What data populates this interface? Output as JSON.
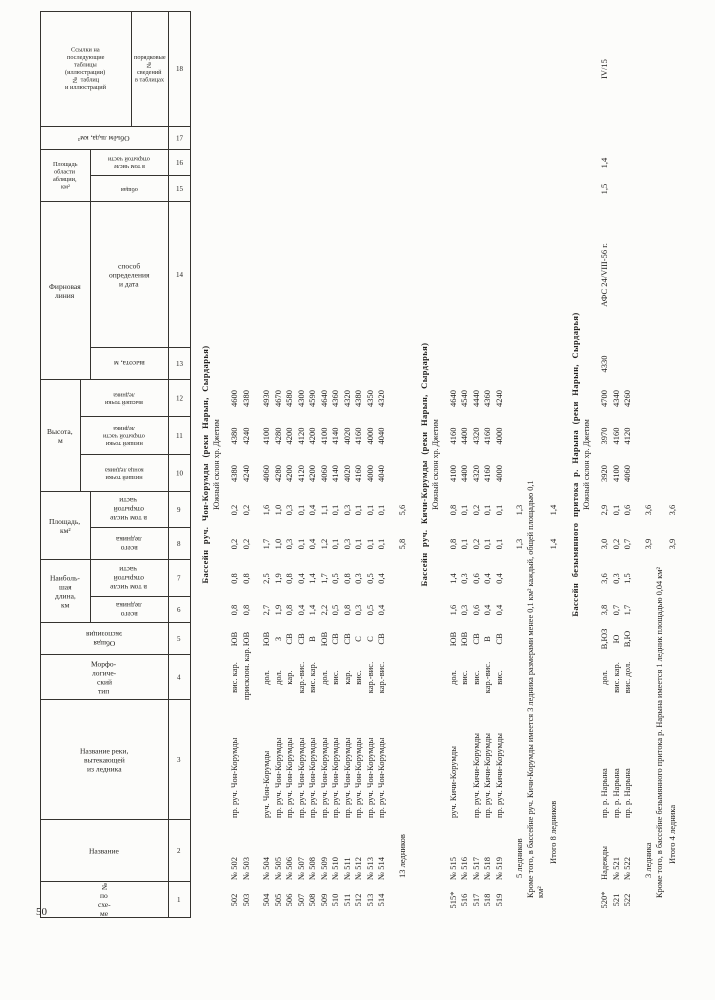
{
  "page": {
    "number": "50"
  },
  "table": {
    "column_numbers": [
      "1",
      "2",
      "3",
      "4",
      "5",
      "6",
      "7",
      "8",
      "9",
      "10",
      "11",
      "12",
      "13",
      "14",
      "15",
      "16",
      "17",
      "18"
    ],
    "headers": {
      "c1": "№\nпо\nсхе-\nме",
      "c2": "Название",
      "c3": "Название реки,\nвытекающей\nиз ледника",
      "c4": "Морфо-\nлогиче-\nский\nтип",
      "c5": "Общая\nэкспозиция",
      "g67": "Наиболь-\nшая\nдлина,\nкм",
      "c6": "всего\nледника",
      "c7": "в том числе\nоткрытой\nчасти",
      "g89": "Площадь,\nкм²",
      "c8": "всего\nледника",
      "c9": "в том числе\nоткрытой\nчасти",
      "g1012": "Высота,\nм",
      "c10": "низшей точки\nконца ледника",
      "c11": "низшей точки\nоткрытой части\nледника",
      "c12": "высшей точки\nледника",
      "g1314": "Фирновая линия",
      "c13": "высота, м",
      "c14": "способ\nопределения\nи дата",
      "g1516": "Площадь\nобласти\nабляции,\nкм²",
      "c15": "общая",
      "c16": "в том числе\nоткрытой части",
      "c17": "Объём льда, км³",
      "g18": "Ссылки на\nпоследующие\nтаблицы\n(иллюстрации)\n№ таблиц\nи иллюстраций",
      "c18": "порядковые №\nсведений\nв таблицах"
    },
    "sections": [
      {
        "title": "Бассейн руч. Чон-Корумды (реки Нарын, Сырдарья)",
        "subtitle": "Южный склон хр. Джетим",
        "rows": [
          {
            "n": "502",
            "name": "№ 502",
            "river": "пр. руч. Чон-Корумды",
            "type": "вис. кар.",
            "exp": "ЮВ",
            "len_t": "0,8",
            "len_o": "0,8",
            "area_t": "0,2",
            "area_o": "0,2",
            "h_end": "4380",
            "h_open": "4380",
            "h_top": "4600",
            "firn_h": "",
            "firn_m": "",
            "abl_t": "",
            "abl_o": "",
            "vol": "",
            "ref": ""
          },
          {
            "n": "503",
            "name": "№ 503",
            "river": "",
            "type": "присклон. кар.",
            "exp": "ЮВ",
            "len_t": "0,8",
            "len_o": "0,8",
            "area_t": "0,2",
            "area_o": "0,2",
            "h_end": "4240",
            "h_open": "4240",
            "h_top": "4380",
            "firn_h": "",
            "firn_m": "",
            "abl_t": "",
            "abl_o": "",
            "vol": "",
            "ref": ""
          },
          {
            "n": "504",
            "gap": true,
            "name": "№ 504",
            "river": "руч. Чон-Корумды",
            "type": "дол.",
            "exp": "ЮВ",
            "len_t": "2,7",
            "len_o": "2,5",
            "area_t": "1,7",
            "area_o": "1,6",
            "h_end": "4060",
            "h_open": "4100",
            "h_top": "4930",
            "firn_h": "",
            "firn_m": "",
            "abl_t": "",
            "abl_o": "",
            "vol": "",
            "ref": ""
          },
          {
            "n": "505",
            "name": "№ 505",
            "river": "пр. руч. Чон-Корумды",
            "type": "дол.",
            "exp": "З",
            "len_t": "1,9",
            "len_o": "1,9",
            "area_t": "1,0",
            "area_o": "1,0",
            "h_end": "4280",
            "h_open": "4280",
            "h_top": "4670",
            "firn_h": "",
            "firn_m": "",
            "abl_t": "",
            "abl_o": "",
            "vol": "",
            "ref": ""
          },
          {
            "n": "506",
            "name": "№ 506",
            "river": "пр. руч. Чон-Корумды",
            "type": "кар.",
            "exp": "СВ",
            "len_t": "0,8",
            "len_o": "0,8",
            "area_t": "0,3",
            "area_o": "0,3",
            "h_end": "4200",
            "h_open": "4200",
            "h_top": "4580",
            "firn_h": "",
            "firn_m": "",
            "abl_t": "",
            "abl_o": "",
            "vol": "",
            "ref": ""
          },
          {
            "n": "507",
            "name": "№ 507",
            "river": "пр. руч. Чон-Корумды",
            "type": "кар.-вис.",
            "exp": "СВ",
            "len_t": "0,4",
            "len_o": "0,4",
            "area_t": "0,1",
            "area_o": "0,1",
            "h_end": "4120",
            "h_open": "4120",
            "h_top": "4300",
            "firn_h": "",
            "firn_m": "",
            "abl_t": "",
            "abl_o": "",
            "vol": "",
            "ref": ""
          },
          {
            "n": "508",
            "name": "№ 508",
            "river": "пр. руч. Чон-Корумды",
            "type": "вис. кар.",
            "exp": "В",
            "len_t": "1,4",
            "len_o": "1,4",
            "area_t": "0,4",
            "area_o": "0,4",
            "h_end": "4200",
            "h_open": "4200",
            "h_top": "4590",
            "firn_h": "",
            "firn_m": "",
            "abl_t": "",
            "abl_o": "",
            "vol": "",
            "ref": ""
          },
          {
            "n": "509",
            "name": "№ 509",
            "river": "пр. руч. Чон-Корумды",
            "type": "дол.",
            "exp": "ЮВ",
            "len_t": "2,2",
            "len_o": "1,7",
            "area_t": "1,2",
            "area_o": "1,1",
            "h_end": "4060",
            "h_open": "4100",
            "h_top": "4640",
            "firn_h": "",
            "firn_m": "",
            "abl_t": "",
            "abl_o": "",
            "vol": "",
            "ref": ""
          },
          {
            "n": "510",
            "name": "№ 510",
            "river": "пр. руч. Чон-Корумды",
            "type": "вис.",
            "exp": "СВ",
            "len_t": "0,5",
            "len_o": "0,5",
            "area_t": "0,1",
            "area_o": "0,1",
            "h_end": "4140",
            "h_open": "4140",
            "h_top": "4360",
            "firn_h": "",
            "firn_m": "",
            "abl_t": "",
            "abl_o": "",
            "vol": "",
            "ref": ""
          },
          {
            "n": "511",
            "name": "№ 511",
            "river": "пр. руч. Чон-Корумды",
            "type": "кар.",
            "exp": "СВ",
            "len_t": "0,8",
            "len_o": "0,8",
            "area_t": "0,3",
            "area_o": "0,3",
            "h_end": "4020",
            "h_open": "4020",
            "h_top": "4320",
            "firn_h": "",
            "firn_m": "",
            "abl_t": "",
            "abl_o": "",
            "vol": "",
            "ref": ""
          },
          {
            "n": "512",
            "name": "№ 512",
            "river": "пр. руч. Чон-Корумды",
            "type": "вис.",
            "exp": "С",
            "len_t": "0,3",
            "len_o": "0,3",
            "area_t": "0,1",
            "area_o": "0,1",
            "h_end": "4160",
            "h_open": "4160",
            "h_top": "4380",
            "firn_h": "",
            "firn_m": "",
            "abl_t": "",
            "abl_o": "",
            "vol": "",
            "ref": ""
          },
          {
            "n": "513",
            "name": "№ 513",
            "river": "пр. руч. Чон-Корумды",
            "type": "кар.-вис.",
            "exp": "С",
            "len_t": "0,5",
            "len_o": "0,5",
            "area_t": "0,1",
            "area_o": "0,1",
            "h_end": "4000",
            "h_open": "4000",
            "h_top": "4350",
            "firn_h": "",
            "firn_m": "",
            "abl_t": "",
            "abl_o": "",
            "vol": "",
            "ref": ""
          },
          {
            "n": "514",
            "name": "№ 514",
            "river": "пр. руч. Чон-Корумды",
            "type": "кар.-вис.",
            "exp": "СВ",
            "len_t": "0,4",
            "len_o": "0,4",
            "area_t": "0,1",
            "area_o": "0,1",
            "h_end": "4040",
            "h_open": "4040",
            "h_top": "4320",
            "firn_h": "",
            "firn_m": "",
            "abl_t": "",
            "abl_o": "",
            "vol": "",
            "ref": ""
          }
        ],
        "summary": [
          {
            "label": "13 ледников",
            "area_t": "5,8",
            "area_o": "5,6"
          }
        ]
      },
      {
        "title": "Бассейн руч. Кичи-Корумды (реки Нарын, Сырдарья)",
        "subtitle": "Южный склон хр. Джетим",
        "rows": [
          {
            "n": "515*",
            "name": "№ 515",
            "river": "руч. Кичи-Корумды",
            "type": "дол.",
            "exp": "ЮВ",
            "len_t": "1,6",
            "len_o": "1,4",
            "area_t": "0,8",
            "area_o": "0,8",
            "h_end": "4100",
            "h_open": "4160",
            "h_top": "4640",
            "firn_h": "",
            "firn_m": "",
            "abl_t": "",
            "abl_o": "",
            "vol": "",
            "ref": ""
          },
          {
            "n": "516",
            "name": "№ 516",
            "river": "",
            "type": "вис.",
            "exp": "ЮВ",
            "len_t": "0,3",
            "len_o": "0,3",
            "area_t": "0,1",
            "area_o": "0,1",
            "h_end": "4400",
            "h_open": "4400",
            "h_top": "4540",
            "firn_h": "",
            "firn_m": "",
            "abl_t": "",
            "abl_o": "",
            "vol": "",
            "ref": ""
          },
          {
            "n": "517",
            "name": "№ 517",
            "river": "пр. руч. Кичи-Корумды",
            "type": "вис.",
            "exp": "СВ",
            "len_t": "0,6",
            "len_o": "0,6",
            "area_t": "0,2",
            "area_o": "0,2",
            "h_end": "4320",
            "h_open": "4320",
            "h_top": "4440",
            "firn_h": "",
            "firn_m": "",
            "abl_t": "",
            "abl_o": "",
            "vol": "",
            "ref": ""
          },
          {
            "n": "518",
            "name": "№ 518",
            "river": "пр. руч. Кичи-Корумды",
            "type": "кар.-вис.",
            "exp": "В",
            "len_t": "0,4",
            "len_o": "0,4",
            "area_t": "0,1",
            "area_o": "0,1",
            "h_end": "4160",
            "h_open": "4160",
            "h_top": "4360",
            "firn_h": "",
            "firn_m": "",
            "abl_t": "",
            "abl_o": "",
            "vol": "",
            "ref": ""
          },
          {
            "n": "519",
            "name": "№ 519",
            "river": "пр. руч. Кичи-Корумды",
            "type": "вис.",
            "exp": "СВ",
            "len_t": "0,4",
            "len_o": "0,4",
            "area_t": "0,1",
            "area_o": "0,1",
            "h_end": "4000",
            "h_open": "4000",
            "h_top": "4240",
            "firn_h": "",
            "firn_m": "",
            "abl_t": "",
            "abl_o": "",
            "vol": "",
            "ref": ""
          }
        ],
        "summary": [
          {
            "label": "5 ледников",
            "area_t": "1,3",
            "area_o": "1,3"
          },
          {
            "label": "Кроме того, в бассейне руч. Кичи-Корумды имеется 3 ледника размерами менее 0,1 км² каждый, общей площадью 0,1 км²",
            "note": true
          },
          {
            "label": "Итого 8 ледников",
            "area_t": "1,4",
            "area_o": "1,4",
            "indent": true
          }
        ]
      },
      {
        "title": "Бассейн безымянного притока р. Нарына (реки Нарын, Сырдарья)",
        "subtitle": "Южный склон хр. Джетим",
        "rows": [
          {
            "n": "520*",
            "name": "Надежды",
            "river": "пр. р. Нарына",
            "type": "дол.",
            "exp": "В,ЮЗ",
            "len_t": "3,8",
            "len_o": "3,6",
            "area_t": "3,0",
            "area_o": "2,9",
            "h_end": "3920",
            "h_open": "3970",
            "h_top": "4700",
            "firn_h": "4330",
            "firn_m": "АФС 24/VIII-56 г.",
            "abl_t": "1,5",
            "abl_o": "1,4",
            "vol": "",
            "ref": "IV/15"
          },
          {
            "n": "521",
            "name": "№ 521",
            "river": "пр. р. Нарына",
            "type": "вис. кар.",
            "exp": "Ю",
            "len_t": "0,7",
            "len_o": "0,3",
            "area_t": "0,2",
            "area_o": "0,1",
            "h_end": "4100",
            "h_open": "4160",
            "h_top": "4340",
            "firn_h": "",
            "firn_m": "",
            "abl_t": "",
            "abl_o": "",
            "vol": "",
            "ref": ""
          },
          {
            "n": "522",
            "name": "№ 522",
            "river": "пр. р. Нарына",
            "type": "вис. дол.",
            "exp": "В,Ю",
            "len_t": "1,7",
            "len_o": "1,5",
            "area_t": "0,7",
            "area_o": "0,6",
            "h_end": "4060",
            "h_open": "4120",
            "h_top": "4260",
            "firn_h": "",
            "firn_m": "",
            "abl_t": "",
            "abl_o": "",
            "vol": "",
            "ref": ""
          }
        ],
        "summary": [
          {
            "label": "3 ледника",
            "area_t": "3,9",
            "area_o": "3,6"
          },
          {
            "label": "Кроме того, в бассейне безымянного притока р. Нарына имеется 1 ледник площадью 0,04 км²",
            "note": true
          },
          {
            "label": "Итого 4 ледника",
            "area_t": "3,9",
            "area_o": "3,6",
            "indent": true
          }
        ]
      }
    ]
  }
}
